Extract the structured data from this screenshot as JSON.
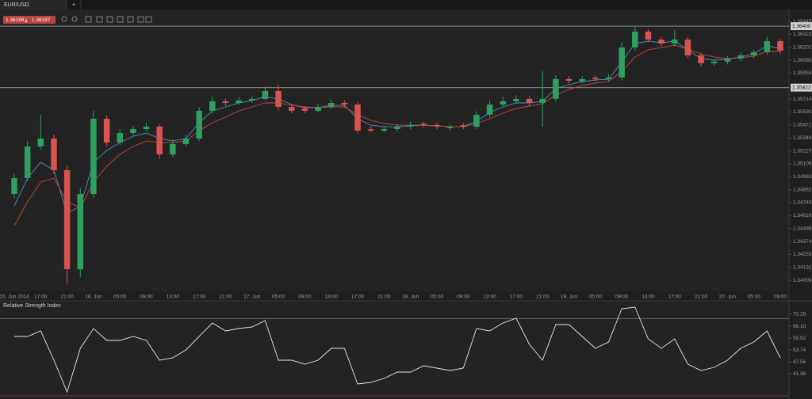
{
  "header": {
    "tab": "EUR/USD",
    "new_tab": "+",
    "bid": "1.36168",
    "ask": "1.36187"
  },
  "chart_data": [
    {
      "type": "candlestick",
      "categories": [
        "15. Jun 2014",
        null,
        "17:00",
        null,
        "21:00",
        null,
        "16. Jun",
        null,
        "05:00",
        null,
        "09:00",
        null,
        "13:00",
        null,
        "17:00",
        null,
        "21:00",
        null,
        "17. Jun",
        null,
        "05:00",
        null,
        "09:00",
        null,
        "13:00",
        null,
        "17:00",
        null,
        "21:00",
        null,
        "18. Jun",
        null,
        "05:00",
        null,
        "09:00",
        null,
        "13:00",
        null,
        "17:00",
        null,
        "21:00",
        null,
        "19. Jun",
        null,
        "05:00",
        null,
        "09:00",
        null,
        "13:00",
        null,
        "17:00",
        null,
        "21:00",
        null,
        "20. Jun",
        null,
        "05:00",
        null,
        "09:00"
      ],
      "open": [
        1.3482,
        1.3497,
        1.35268,
        1.35343,
        1.35045,
        1.34113,
        1.34821,
        1.35529,
        1.35306,
        1.35395,
        1.35432,
        1.35455,
        1.35194,
        1.35291,
        1.35343,
        1.35604,
        1.35693,
        1.35678,
        1.35701,
        1.35716,
        1.3579,
        1.35641,
        1.35625,
        1.35604,
        1.35641,
        1.35678,
        1.35663,
        1.3543,
        1.35417,
        1.35432,
        1.35455,
        1.35482,
        1.3547,
        1.3544,
        1.35468,
        1.35455,
        1.35567,
        1.35663,
        1.35693,
        1.35716,
        1.35678,
        1.35716,
        1.35902,
        1.3588,
        1.35915,
        1.35902,
        1.35917,
        1.362,
        1.36349,
        1.36274,
        1.36237,
        1.36274,
        1.36125,
        1.36051,
        1.36066,
        1.36096,
        1.36125,
        1.36155,
        1.3626
      ],
      "high": [
        1.3501,
        1.3532,
        1.35567,
        1.3538,
        1.3509,
        1.3488,
        1.35604,
        1.3556,
        1.3543,
        1.3546,
        1.3549,
        1.3548,
        1.3533,
        1.3538,
        1.3564,
        1.3574,
        1.3572,
        1.3573,
        1.3574,
        1.3583,
        1.35849,
        1.3567,
        1.3565,
        1.3567,
        1.3571,
        1.357,
        1.3569,
        1.3546,
        1.3546,
        1.3548,
        1.355,
        1.355,
        1.3549,
        1.3548,
        1.3549,
        1.356,
        1.357,
        1.3573,
        1.3575,
        1.3574,
        1.35976,
        1.3594,
        1.3593,
        1.3593,
        1.3594,
        1.3595,
        1.3625,
        1.36401,
        1.3637,
        1.363,
        1.36364,
        1.363,
        1.3615,
        1.3609,
        1.3612,
        1.3615,
        1.3618,
        1.363,
        1.3628
      ],
      "low": [
        1.3478,
        1.3494,
        1.3524,
        1.3501,
        1.33979,
        1.34039,
        1.3479,
        1.3527,
        1.3528,
        1.3537,
        1.3541,
        1.3515,
        1.3517,
        1.3527,
        1.3532,
        1.3558,
        1.3565,
        1.3566,
        1.3568,
        1.357,
        1.3561,
        1.3558,
        1.3558,
        1.3559,
        1.3562,
        1.3564,
        1.3539,
        1.354,
        1.354,
        1.3541,
        1.3543,
        1.3545,
        1.3543,
        1.3542,
        1.3543,
        1.3543,
        1.3554,
        1.3564,
        1.3567,
        1.3565,
        1.35454,
        1.3569,
        1.3586,
        1.3586,
        1.3588,
        1.3588,
        1.3589,
        1.3617,
        1.3625,
        1.3621,
        1.3621,
        1.361,
        1.3602,
        1.3603,
        1.3604,
        1.3607,
        1.361,
        1.3613,
        1.3614
      ],
      "close": [
        1.3497,
        1.35268,
        1.35343,
        1.35045,
        1.34113,
        1.34821,
        1.35529,
        1.35306,
        1.35395,
        1.35432,
        1.35455,
        1.35194,
        1.35291,
        1.35343,
        1.35604,
        1.35693,
        1.35678,
        1.35701,
        1.35716,
        1.3579,
        1.35641,
        1.35604,
        1.35604,
        1.35641,
        1.35678,
        1.35663,
        1.35417,
        1.35417,
        1.35432,
        1.35455,
        1.3547,
        1.3547,
        1.35455,
        1.35455,
        1.35455,
        1.35567,
        1.35663,
        1.35693,
        1.35716,
        1.35678,
        1.35716,
        1.35902,
        1.35887,
        1.35902,
        1.35902,
        1.35917,
        1.362,
        1.36349,
        1.36274,
        1.36237,
        1.36274,
        1.36125,
        1.36051,
        1.36066,
        1.36096,
        1.36125,
        1.36155,
        1.3626,
        1.3617
      ],
      "up_color": "#2f9e5f",
      "down_color": "#d9534f",
      "overlays": [
        {
          "color": "#4a8fc0",
          "values": [
            1.34709,
            1.3497,
            1.35119,
            1.35045,
            1.34635,
            1.34709,
            1.35119,
            1.35231,
            1.35305,
            1.35365,
            1.35395,
            1.35343,
            1.3532,
            1.35343,
            1.35492,
            1.35603,
            1.35641,
            1.35678,
            1.357,
            1.35737,
            1.35715,
            1.35663,
            1.35633,
            1.35633,
            1.35655,
            1.35655,
            1.35529,
            1.35469,
            1.35454,
            1.35454,
            1.35462,
            1.35469,
            1.35462,
            1.35454,
            1.35454,
            1.35506,
            1.35588,
            1.35641,
            1.35678,
            1.35678,
            1.35693,
            1.35812,
            1.35849,
            1.35879,
            1.35894,
            1.35901,
            1.36065,
            1.36237,
            1.36259,
            1.36244,
            1.36259,
            1.36177,
            1.36095,
            1.3608,
            1.36088,
            1.3611,
            1.3614,
            1.36214,
            1.36192
          ]
        },
        {
          "color": "#c9463f",
          "values": [
            1.34523,
            1.34747,
            1.34933,
            1.3497,
            1.34747,
            1.34694,
            1.34933,
            1.35082,
            1.35194,
            1.35268,
            1.3532,
            1.35305,
            1.35305,
            1.3532,
            1.35417,
            1.35492,
            1.35544,
            1.35603,
            1.35641,
            1.35678,
            1.35678,
            1.35655,
            1.35641,
            1.35633,
            1.35641,
            1.35641,
            1.35566,
            1.35514,
            1.35484,
            1.35469,
            1.35469,
            1.35469,
            1.35462,
            1.35454,
            1.35454,
            1.35484,
            1.35529,
            1.35581,
            1.35626,
            1.35648,
            1.3567,
            1.35752,
            1.35805,
            1.35842,
            1.35864,
            1.35879,
            1.35976,
            1.3611,
            1.36177,
            1.36199,
            1.36222,
            1.36184,
            1.3614,
            1.3611,
            1.36095,
            1.36103,
            1.36117,
            1.36162,
            1.36162
          ]
        }
      ],
      "ylim": [
        1.33905,
        1.36557
      ],
      "yticks": [
        1.36445,
        1.36323,
        1.36202,
        {
          "value": 1.3608,
          "label": "1.36080"
        },
        1.35958,
        1.35714,
        1.35593,
        1.35471,
        1.35349,
        1.35227,
        1.35105,
        1.34983,
        1.34862,
        {
          "value": 1.3474,
          "label": "1.34740"
        },
        1.34618,
        1.34496,
        1.34374,
        1.34253,
        1.34131,
        1.34009
      ],
      "levels": [
        {
          "value": 1.364,
          "label": "1.36400"
        },
        1.35822
      ]
    },
    {
      "type": "line",
      "title": "Relative Strength Index",
      "color": "#e6e6e6",
      "values": [
        60.79,
        60.79,
        63.66,
        48.47,
        32.05,
        54.63,
        64.89,
        58.73,
        58.73,
        60.79,
        58.73,
        48.47,
        49.7,
        53.81,
        60.79,
        67.76,
        63.66,
        64.89,
        65.71,
        69.0,
        48.47,
        48.47,
        46.42,
        48.47,
        54.63,
        54.63,
        36.16,
        36.98,
        39.03,
        42.31,
        42.31,
        45.6,
        44.37,
        43.13,
        44.37,
        64.89,
        63.66,
        67.76,
        70.23,
        56.68,
        48.47,
        66.94,
        66.94,
        60.79,
        54.63,
        57.91,
        75.15,
        75.97,
        59.55,
        54.63,
        59.55,
        46.42,
        43.13,
        44.78,
        48.47,
        54.63,
        57.91,
        63.66,
        49.7
      ],
      "ylim": [
        30,
        77.21
      ],
      "yticks": [
        72.28,
        {
          "value": 66.1,
          "label": "66.10"
        },
        59.92,
        53.74,
        47.56,
        41.38
      ],
      "levels": [
        70,
        30
      ],
      "level_colors": [
        "#4f7a4f",
        "#a33a3a"
      ]
    }
  ]
}
